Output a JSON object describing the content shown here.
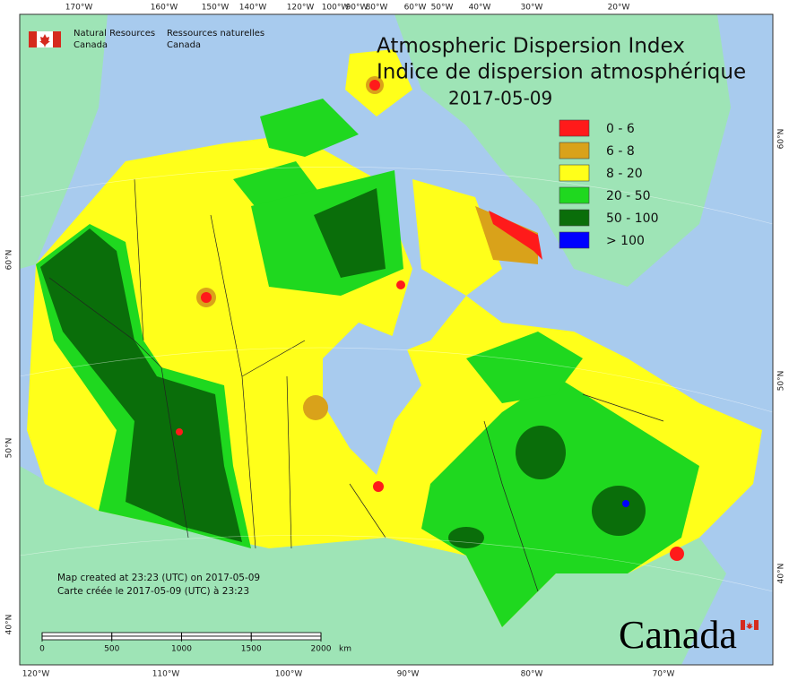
{
  "header": {
    "agency_en": [
      "Natural Resources",
      "Canada"
    ],
    "agency_fr": [
      "Ressources naturelles",
      "Canada"
    ]
  },
  "title": {
    "line1": "Atmospheric Dispersion Index",
    "line2": "Indice de dispersion atmosphérique",
    "date": "2017-05-09"
  },
  "legend": [
    {
      "label": "0 - 6",
      "color": "#ff1a1a"
    },
    {
      "label": "6 - 8",
      "color": "#d9a21a"
    },
    {
      "label": "8 - 20",
      "color": "#ffff1a"
    },
    {
      "label": "20 - 50",
      "color": "#1fd81f"
    },
    {
      "label": "50 - 100",
      "color": "#0a6e0a"
    },
    {
      "label": "> 100",
      "color": "#0000ff"
    }
  ],
  "graticule": {
    "top": [
      "170°W",
      "160°W",
      "150°W",
      "140°W",
      "120°W",
      "100°W",
      "90°W",
      "80°W",
      "60°W",
      "50°W",
      "40°W",
      "30°W",
      "20°W"
    ],
    "bottom": [
      "120°W",
      "110°W",
      "100°W",
      "90°W",
      "80°W",
      "70°W"
    ],
    "left": [
      "60°N",
      "50°N",
      "40°N"
    ],
    "right": [
      "60°N",
      "50°N",
      "40°N"
    ]
  },
  "footer": {
    "created_en": "Map created at 23:23 (UTC) on 2017-05-09",
    "created_fr": "Carte créée le 2017-05-09 (UTC) à 23:23"
  },
  "scale_bar": {
    "ticks": [
      0,
      500,
      1000,
      1500,
      2000
    ],
    "unit": "km"
  },
  "wordmark": "Canada"
}
